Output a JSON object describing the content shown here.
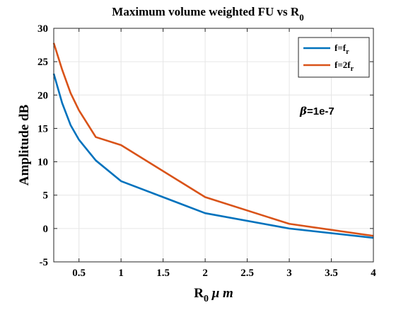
{
  "chart_data": {
    "type": "line",
    "title": {
      "main": "Maximum volume weighted FU vs R",
      "sub": "0"
    },
    "xlabel": {
      "main": "R",
      "sub": "0",
      "rest": " μ m"
    },
    "ylabel": "Amplitude dB",
    "xlim": [
      0.2,
      4
    ],
    "ylim": [
      -5,
      30
    ],
    "x_ticks": [
      "0.5",
      "1",
      "1.5",
      "2",
      "2.5",
      "3",
      "3.5",
      "4"
    ],
    "x_tick_values": [
      0.5,
      1,
      1.5,
      2,
      2.5,
      3,
      3.5,
      4
    ],
    "y_ticks": [
      "-5",
      "0",
      "5",
      "10",
      "15",
      "20",
      "25",
      "30"
    ],
    "y_tick_values": [
      -5,
      0,
      5,
      10,
      15,
      20,
      25,
      30
    ],
    "grid": true,
    "legend_position": "top-right",
    "annotation": {
      "greek": "β",
      "rest": "=1e-7"
    },
    "series": [
      {
        "name": {
          "main": "f=f",
          "sub": "r"
        },
        "color": "#0072BD",
        "x": [
          0.2,
          0.3,
          0.4,
          0.5,
          0.7,
          1.0,
          2.0,
          3.0,
          4.0
        ],
        "y": [
          23.2,
          18.8,
          15.5,
          13.3,
          10.2,
          7.1,
          2.3,
          0.0,
          -1.4
        ]
      },
      {
        "name": {
          "main": "f=2f",
          "sub": "r"
        },
        "color": "#D95319",
        "x": [
          0.2,
          0.3,
          0.4,
          0.5,
          0.7,
          1.0,
          2.0,
          3.0,
          4.0
        ],
        "y": [
          27.8,
          23.8,
          20.3,
          17.7,
          13.7,
          12.5,
          4.7,
          0.7,
          -1.1
        ]
      }
    ]
  }
}
